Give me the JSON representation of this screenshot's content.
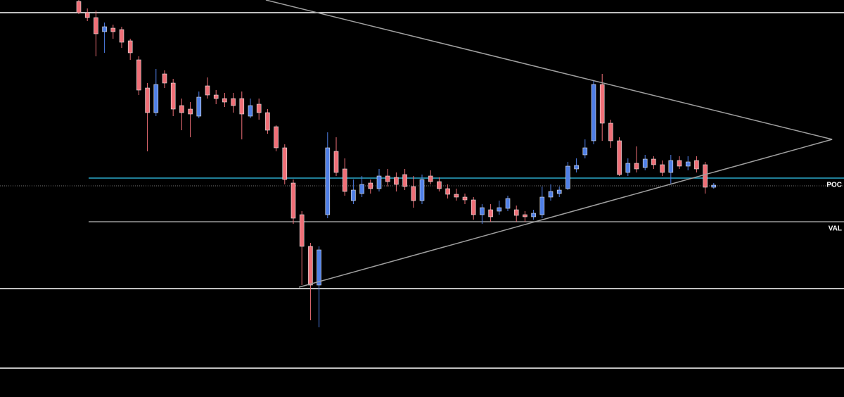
{
  "chart_data": {
    "type": "candlestick",
    "xlim": [
      -9.18,
      89.18
    ],
    "ylim": [
      0,
      564
    ],
    "up_color": "#4f7fe6",
    "down_color": "#ef6f77",
    "x": [
      0,
      1,
      2,
      3,
      4,
      5,
      6,
      7,
      8,
      9,
      10,
      11,
      12,
      13,
      14,
      15,
      16,
      17,
      18,
      19,
      20,
      21,
      22,
      23,
      24,
      25,
      26,
      27,
      28,
      29,
      30,
      31,
      32,
      33,
      34,
      35,
      36,
      37,
      38,
      39,
      40,
      41,
      42,
      43,
      44,
      45,
      46,
      47,
      48,
      49,
      50,
      51,
      52,
      53,
      54,
      55,
      56,
      57,
      58,
      59,
      60,
      61,
      62,
      63,
      64,
      65,
      66,
      67,
      68,
      69,
      70,
      71,
      72,
      73,
      74
    ],
    "open": [
      562,
      546,
      539,
      519,
      524,
      522,
      506,
      479,
      439,
      404,
      459,
      446,
      414,
      409,
      399,
      442,
      429,
      424,
      424,
      424,
      399,
      416,
      404,
      384,
      354,
      304,
      259,
      214,
      159,
      259,
      349,
      324,
      279,
      289,
      304,
      296,
      314,
      312,
      316,
      299,
      279,
      314,
      306,
      296,
      288,
      284,
      280,
      259,
      266,
      264,
      268,
      266,
      259,
      256,
      259,
      284,
      289,
      296,
      324,
      344,
      364,
      444,
      389,
      364,
      319,
      332,
      326,
      338,
      330,
      319,
      336,
      328,
      336,
      330,
      298
    ],
    "high": [
      564,
      552,
      549,
      532,
      529,
      526,
      509,
      484,
      446,
      466,
      464,
      452,
      424,
      419,
      434,
      454,
      436,
      432,
      432,
      434,
      424,
      424,
      409,
      386,
      359,
      309,
      264,
      219,
      214,
      376,
      369,
      339,
      309,
      314,
      309,
      324,
      324,
      319,
      324,
      314,
      316,
      322,
      312,
      302,
      296,
      289,
      284,
      274,
      274,
      279,
      286,
      272,
      264,
      266,
      299,
      302,
      299,
      334,
      339,
      366,
      449,
      459,
      394,
      369,
      339,
      356,
      344,
      342,
      336,
      344,
      342,
      342,
      342,
      334,
      304
    ],
    "low": [
      544,
      534,
      484,
      489,
      509,
      496,
      479,
      429,
      349,
      399,
      439,
      399,
      379,
      369,
      396,
      424,
      416,
      412,
      404,
      366,
      396,
      394,
      374,
      349,
      302,
      246,
      159,
      109,
      99,
      254,
      314,
      286,
      274,
      284,
      289,
      292,
      299,
      292,
      294,
      269,
      274,
      302,
      292,
      282,
      279,
      274,
      252,
      246,
      249,
      259,
      264,
      249,
      249,
      252,
      254,
      279,
      284,
      294,
      319,
      339,
      359,
      364,
      354,
      314,
      314,
      319,
      322,
      324,
      314,
      302,
      324,
      322,
      319,
      289,
      296
    ],
    "close": [
      546,
      539,
      516,
      526,
      519,
      504,
      489,
      436,
      404,
      444,
      446,
      409,
      404,
      402,
      426,
      429,
      424,
      419,
      414,
      402,
      414,
      404,
      379,
      354,
      309,
      254,
      214,
      159,
      209,
      354,
      319,
      292,
      294,
      302,
      296,
      314,
      306,
      302,
      299,
      279,
      309,
      306,
      296,
      288,
      284,
      280,
      259,
      269,
      256,
      269,
      282,
      258,
      256,
      261,
      284,
      292,
      294,
      328,
      329,
      354,
      444,
      389,
      364,
      316,
      332,
      324,
      338,
      330,
      319,
      336,
      328,
      334,
      324,
      298,
      301
    ],
    "levels": [
      {
        "value": 546,
        "color": "#ffffff"
      },
      {
        "value": 154,
        "color": "#ffffff"
      },
      {
        "value": 41,
        "color": "#ffffff"
      },
      {
        "value": 300,
        "color": "#777777",
        "dotted": true
      },
      {
        "label": "POC",
        "value": 311,
        "color": "#2aa7c9",
        "start": 1.15
      },
      {
        "label": "VAL",
        "value": 249,
        "color": "#9a9a9a",
        "start": 1.15
      }
    ],
    "trendlines": [
      {
        "x": [
          21.8,
          87.8
        ],
        "values": [
          564,
          366
        ],
        "color": "#a0a0a0"
      },
      {
        "x": [
          25.66,
          87.8
        ],
        "values": [
          156,
          366
        ],
        "color": "#a0a0a0"
      }
    ]
  }
}
